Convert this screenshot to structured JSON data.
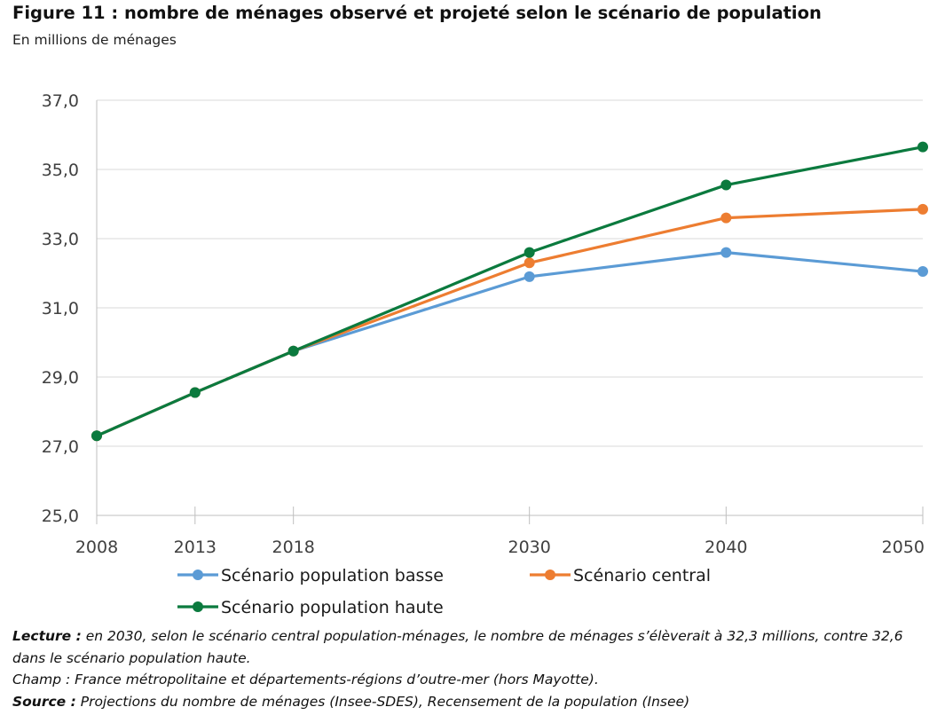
{
  "title": "Figure 11 : nombre de ménages observé et projeté selon le scénario de population",
  "subtitle": "En millions de ménages",
  "chart_data": {
    "type": "line",
    "title": "Figure 11 : nombre de ménages observé et projeté selon le scénario de population",
    "ylabel": "En millions de ménages",
    "xlabel": "",
    "x": [
      2008,
      2013,
      2018,
      2030,
      2040,
      2050
    ],
    "x_tick_labels": [
      "2008",
      "2013",
      "2018",
      "2030",
      "2040",
      "2050"
    ],
    "ylim": [
      25.0,
      37.0
    ],
    "y_ticks": [
      25.0,
      27.0,
      29.0,
      31.0,
      33.0,
      35.0,
      37.0
    ],
    "y_tick_labels": [
      "25,0",
      "27,0",
      "29,0",
      "31,0",
      "33,0",
      "35,0",
      "37,0"
    ],
    "grid": "horizontal",
    "legend_position": "bottom",
    "series": [
      {
        "name": "Scénario population basse",
        "color": "#5B9BD5",
        "values": [
          27.3,
          28.55,
          29.75,
          31.9,
          32.6,
          32.05
        ]
      },
      {
        "name": "Scénario central",
        "color": "#ED7D31",
        "values": [
          27.3,
          28.55,
          29.75,
          32.3,
          33.6,
          33.85
        ]
      },
      {
        "name": "Scénario population haute",
        "color": "#0B7A3E",
        "values": [
          27.3,
          28.55,
          29.75,
          32.6,
          34.55,
          35.65
        ]
      }
    ]
  },
  "notes": {
    "lecture_label": "Lecture :",
    "lecture_text": " en 2030, selon le scénario central population-ménages, le nombre de ménages s’élèverait à 32,3 millions, contre 32,6 dans le scénario population haute.",
    "champ_text": "Champ : France métropolitaine et départements-régions d’outre-mer (hors Mayotte).",
    "source_label": "Source :",
    "source_text": " Projections du nombre de ménages (Insee-SDES), Recensement de la population (Insee)"
  }
}
